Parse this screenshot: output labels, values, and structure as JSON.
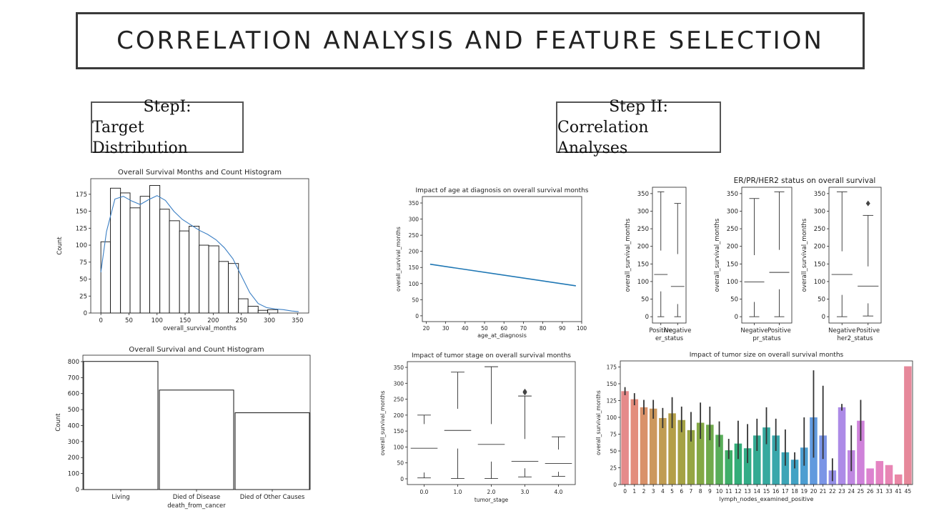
{
  "slide": {
    "title": "CORRELATION ANALYSIS AND FEATURE SELECTION",
    "step1_line1": "StepI:",
    "step1_line2": "Target Distribution",
    "step2_line1": "Step II:",
    "step2_line2": "Correlation Analyses",
    "er_group_title": "ER/PR/HER2 status on overall survival"
  },
  "chart_data": [
    {
      "id": "hist",
      "type": "bar",
      "title": "Overall Survival Months and Count Histogram",
      "xlabel": "overall_survival_months",
      "ylabel": "Count",
      "bins": [
        [
          0,
          17,
          105
        ],
        [
          17,
          35,
          184
        ],
        [
          35,
          52,
          177
        ],
        [
          52,
          70,
          155
        ],
        [
          70,
          87,
          172
        ],
        [
          87,
          105,
          188
        ],
        [
          105,
          122,
          153
        ],
        [
          122,
          140,
          136
        ],
        [
          140,
          157,
          121
        ],
        [
          157,
          175,
          128
        ],
        [
          175,
          192,
          100
        ],
        [
          192,
          210,
          99
        ],
        [
          210,
          227,
          76
        ],
        [
          227,
          245,
          73
        ],
        [
          245,
          262,
          21
        ],
        [
          262,
          280,
          10
        ],
        [
          280,
          297,
          4
        ],
        [
          297,
          315,
          5
        ]
      ],
      "kde_x": [
        0,
        10,
        25,
        40,
        55,
        70,
        85,
        100,
        115,
        130,
        145,
        160,
        175,
        190,
        205,
        220,
        235,
        250,
        265,
        280,
        295,
        310,
        325,
        340,
        352
      ],
      "kde_y": [
        60,
        120,
        168,
        172,
        165,
        160,
        167,
        173,
        166,
        150,
        138,
        130,
        122,
        116,
        108,
        96,
        80,
        55,
        30,
        14,
        8,
        6,
        5,
        3,
        2
      ],
      "xticks": [
        "0",
        "50",
        "100",
        "150",
        "200",
        "250",
        "300",
        "350"
      ],
      "yticks": [
        "0",
        "25",
        "50",
        "75",
        "100",
        "125",
        "150",
        "175"
      ],
      "xlim": [
        -18,
        370
      ],
      "ylim": [
        0,
        198
      ]
    },
    {
      "id": "death",
      "type": "bar",
      "title": "Overall Survival and Count Histogram",
      "xlabel": "death_from_cancer",
      "ylabel": "Count",
      "categories": [
        "Living",
        "Died of Disease",
        "Died of Other Causes"
      ],
      "values": [
        801,
        622,
        480
      ],
      "yticks": [
        "0",
        "100",
        "200",
        "300",
        "400",
        "500",
        "600",
        "700",
        "800"
      ],
      "ylim": [
        0,
        840
      ]
    },
    {
      "id": "age",
      "type": "line",
      "title": "Impact of age at diagnosis on overall survival months",
      "xlabel": "age_at_diagnosis",
      "ylabel": "overall_survival_months",
      "x": [
        22,
        97
      ],
      "y": [
        160,
        93
      ],
      "xticks": [
        "20",
        "30",
        "40",
        "50",
        "60",
        "70",
        "80",
        "90",
        "100"
      ],
      "yticks": [
        "0",
        "50",
        "100",
        "150",
        "200",
        "250",
        "300",
        "350"
      ],
      "xlim": [
        18,
        100
      ],
      "ylim": [
        -18,
        370
      ]
    },
    {
      "id": "tumor_stage",
      "type": "box",
      "title": "Impact of tumor stage on overall survival months",
      "xlabel": "tumor_stage",
      "ylabel": "overall_survival_months",
      "categories": [
        "0.0",
        "1.0",
        "2.0",
        "3.0",
        "4.0"
      ],
      "boxes": [
        {
          "wl": 3,
          "q1": 20,
          "med": 96,
          "q3": 172,
          "wh": 200
        },
        {
          "wl": 1,
          "q1": 95,
          "med": 152,
          "q3": 220,
          "wh": 335
        },
        {
          "wl": 1,
          "q1": 54,
          "med": 108,
          "q3": 172,
          "wh": 352
        },
        {
          "wl": 6,
          "q1": 33,
          "med": 55,
          "q3": 125,
          "wh": 260,
          "out": [
            271,
            274
          ]
        },
        {
          "wl": 8,
          "q1": 22,
          "med": 48,
          "q3": 92,
          "wh": 132
        }
      ],
      "yticks": [
        "0",
        "50",
        "100",
        "150",
        "200",
        "250",
        "300",
        "350"
      ],
      "ylim": [
        -18,
        368
      ]
    },
    {
      "id": "er",
      "type": "box",
      "ylabel": "overall_survival_months",
      "xlabel": "er_status",
      "categories": [
        "Positive",
        "Negative"
      ],
      "boxes": [
        {
          "wl": 0,
          "q1": 72,
          "med": 120,
          "q3": 188,
          "wh": 355
        },
        {
          "wl": 0,
          "q1": 36,
          "med": 86,
          "q3": 178,
          "wh": 322
        }
      ],
      "yticks": [
        "0",
        "50",
        "100",
        "150",
        "200",
        "250",
        "300",
        "350"
      ],
      "ylim": [
        -18,
        368
      ]
    },
    {
      "id": "pr",
      "type": "box",
      "ylabel": "overall_survival_months",
      "xlabel": "pr_status",
      "categories": [
        "Negative",
        "Positive"
      ],
      "boxes": [
        {
          "wl": 0,
          "q1": 42,
          "med": 99,
          "q3": 175,
          "wh": 336
        },
        {
          "wl": 0,
          "q1": 78,
          "med": 126,
          "q3": 190,
          "wh": 355
        }
      ],
      "yticks": [
        "0",
        "50",
        "100",
        "150",
        "200",
        "250",
        "300",
        "350"
      ],
      "ylim": [
        -18,
        368
      ]
    },
    {
      "id": "her2",
      "type": "box",
      "ylabel": "overall_survival_months",
      "xlabel": "her2_status",
      "categories": [
        "Negative",
        "Positive"
      ],
      "boxes": [
        {
          "wl": 0,
          "q1": 62,
          "med": 120,
          "q3": 186,
          "wh": 355
        },
        {
          "wl": 2,
          "q1": 38,
          "med": 87,
          "q3": 143,
          "wh": 288,
          "out": [
            322
          ]
        }
      ],
      "yticks": [
        "0",
        "50",
        "100",
        "150",
        "200",
        "250",
        "300",
        "350"
      ],
      "ylim": [
        -18,
        368
      ]
    },
    {
      "id": "lymph",
      "type": "bar",
      "title": "Impact of tumor size on overall survival months",
      "xlabel": "lymph_nodes_examined_positive",
      "ylabel": "overall_survival_months",
      "categories": [
        "0",
        "1",
        "2",
        "3",
        "4",
        "5",
        "6",
        "7",
        "8",
        "9",
        "10",
        "11",
        "12",
        "13",
        "14",
        "15",
        "16",
        "17",
        "18",
        "19",
        "20",
        "21",
        "22",
        "23",
        "24",
        "25",
        "26",
        "31",
        "33",
        "41",
        "45"
      ],
      "values": [
        139,
        127,
        115,
        113,
        99,
        106,
        96,
        81,
        92,
        89,
        74,
        51,
        61,
        54,
        73,
        85,
        73,
        48,
        37,
        55,
        100,
        73,
        21,
        115,
        51,
        95,
        24,
        35,
        29,
        15,
        176
      ],
      "err_low": [
        133,
        118,
        104,
        98,
        84,
        84,
        78,
        64,
        68,
        66,
        56,
        38,
        38,
        32,
        50,
        60,
        50,
        28,
        24,
        28,
        40,
        38,
        5,
        110,
        20,
        65,
        24,
        35,
        29,
        15,
        176
      ],
      "err_high": [
        145,
        136,
        126,
        126,
        114,
        130,
        116,
        108,
        122,
        116,
        94,
        68,
        95,
        90,
        98,
        115,
        98,
        82,
        48,
        100,
        170,
        147,
        39,
        120,
        88,
        126,
        24,
        35,
        29,
        15,
        176
      ],
      "colors": [
        "#e58a8a",
        "#e38d7c",
        "#d9926a",
        "#cc985d",
        "#c09c52",
        "#b49f47",
        "#a5a244",
        "#96a543",
        "#84a845",
        "#70aa4c",
        "#58ad59",
        "#3fae69",
        "#33ad79",
        "#33ac87",
        "#34aa93",
        "#36a99f",
        "#39a7ab",
        "#3da5b7",
        "#42a2c4",
        "#4d9ed1",
        "#619ade",
        "#7b95e6",
        "#9690e8",
        "#ad8be7",
        "#bf87e1",
        "#cf82da",
        "#dc82cf",
        "#e483c2",
        "#e885b4",
        "#ea87a6",
        "#e6889a"
      ],
      "yticks": [
        "0",
        "25",
        "50",
        "75",
        "100",
        "125",
        "150",
        "175"
      ],
      "ylim": [
        0,
        184
      ]
    }
  ]
}
